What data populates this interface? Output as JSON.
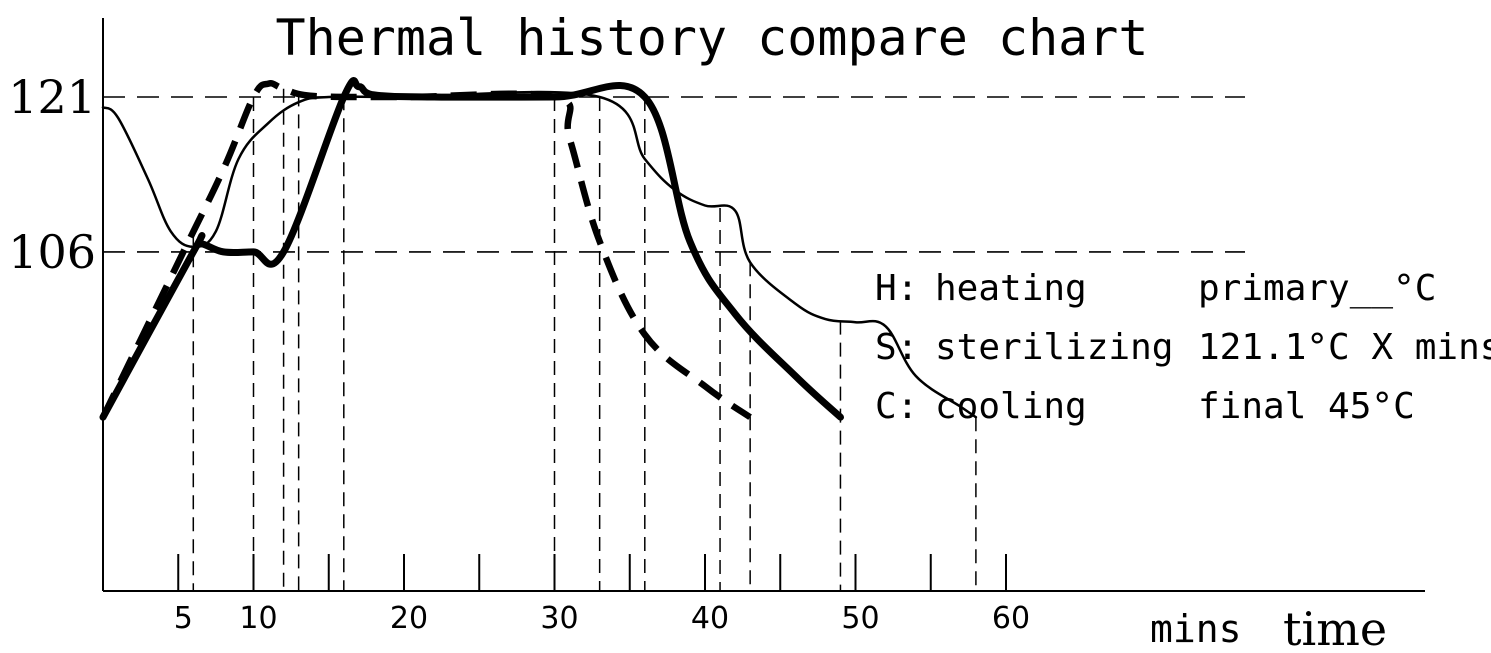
{
  "chart_data": {
    "type": "line",
    "title": "Thermal history compare chart",
    "y_ticks": [
      "121",
      "106"
    ],
    "y_tick_values": [
      121,
      106
    ],
    "x_ticks": [
      "5",
      "10",
      "20",
      "30",
      "40",
      "50",
      "60"
    ],
    "x_tick_values": [
      5,
      10,
      20,
      30,
      40,
      50,
      60
    ],
    "xlim": [
      0,
      88
    ],
    "ylim": [
      70,
      129
    ],
    "x_unit": "mins",
    "xlabel": "time",
    "grid": "dashed horizontal reference lines at 121 and 106, dashed vertical drop lines at phase changes",
    "legend": [
      {
        "code": "H:",
        "name": "heating",
        "spec": "primary__°C"
      },
      {
        "code": "S:",
        "name": "sterilizing",
        "spec": "121.1°C X mins"
      },
      {
        "code": "C:",
        "name": "cooling",
        "spec": "final 45°C"
      }
    ],
    "series": [
      {
        "style": "thick solid",
        "points": [
          [
            0,
            90
          ],
          [
            6,
            106
          ],
          [
            6.5,
            106.8
          ],
          [
            8,
            106
          ],
          [
            10,
            106
          ],
          [
            12,
            106
          ],
          [
            16,
            121
          ],
          [
            17,
            122
          ],
          [
            18,
            121.2
          ],
          [
            22,
            121
          ],
          [
            30,
            121
          ],
          [
            36,
            121
          ],
          [
            39,
            107
          ],
          [
            42,
            100
          ],
          [
            46,
            94
          ],
          [
            49,
            90
          ]
        ]
      },
      {
        "style": "thick dashed",
        "points": [
          [
            0,
            90
          ],
          [
            5,
            105
          ],
          [
            8,
            114
          ],
          [
            10,
            121
          ],
          [
            11,
            122.3
          ],
          [
            12,
            121.8
          ],
          [
            14,
            121.1
          ],
          [
            20,
            121
          ],
          [
            30,
            121
          ],
          [
            31,
            117
          ],
          [
            33,
            107
          ],
          [
            36,
            98
          ],
          [
            40,
            93
          ],
          [
            43,
            90
          ]
        ]
      },
      {
        "style": "thin solid",
        "points": [
          [
            0,
            120
          ],
          [
            1,
            119
          ],
          [
            3,
            113
          ],
          [
            4.5,
            108
          ],
          [
            6,
            106.5
          ],
          [
            7.5,
            108
          ],
          [
            9,
            115
          ],
          [
            11,
            118.5
          ],
          [
            13,
            120.5
          ],
          [
            15,
            121
          ],
          [
            20,
            121
          ],
          [
            33,
            121
          ],
          [
            36,
            115
          ],
          [
            38,
            112
          ],
          [
            40,
            110.5
          ],
          [
            42,
            110
          ],
          [
            43,
            105
          ],
          [
            46,
            101
          ],
          [
            48,
            99.5
          ],
          [
            50,
            99.2
          ],
          [
            52,
            98.8
          ],
          [
            54,
            94
          ],
          [
            57,
            91
          ],
          [
            58,
            90
          ]
        ]
      }
    ],
    "drop_lines_x": [
      6,
      10,
      12,
      13,
      16,
      30,
      33,
      36,
      41,
      43,
      49,
      58
    ]
  }
}
